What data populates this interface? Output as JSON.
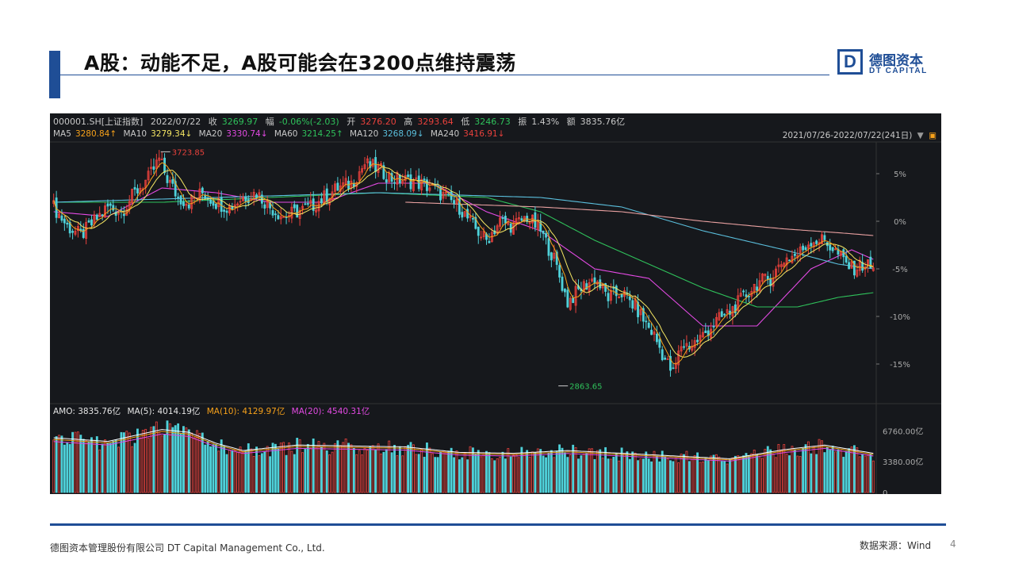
{
  "title": "A股：动能不足，A股可能会在3200点维持震荡",
  "logo": {
    "mark": "D",
    "cn": "德图资本",
    "en": "DT CAPITAL"
  },
  "info": {
    "code": "000001.SH[上证指数]",
    "date": "2022/07/22",
    "close_label": "收",
    "close": "3269.97",
    "change_label": "幅",
    "change": "-0.06%(-2.03)",
    "open_label": "开",
    "open": "3276.20",
    "high_label": "高",
    "high": "3293.64",
    "low_label": "低",
    "low": "3246.73",
    "amp_label": "振",
    "amp": "1.43%",
    "amount_label": "额",
    "amount": "3835.76亿"
  },
  "ma": [
    {
      "label": "MA5",
      "value": "3280.84↑",
      "color": "#f7a11a"
    },
    {
      "label": "MA10",
      "value": "3279.34↓",
      "color": "#f5e663"
    },
    {
      "label": "MA20",
      "value": "3330.74↓",
      "color": "#e44ae4"
    },
    {
      "label": "MA60",
      "value": "3214.25↑",
      "color": "#2fc25b"
    },
    {
      "label": "MA120",
      "value": "3268.09↓",
      "color": "#5bc0de"
    },
    {
      "label": "MA240",
      "value": "3416.91↓",
      "color": "#e8413c"
    }
  ],
  "range": "2021/07/26-2022/07/22(241日)",
  "amo": {
    "amo": "AMO: 3835.76亿",
    "ma5": "MA(5): 4014.19亿",
    "ma10": "MA(10): 4129.97亿",
    "ma20": "MA(20): 4540.31亿"
  },
  "colors": {
    "up": "#e8413c",
    "down": "#4fd1d9",
    "accent": "#1f4e96"
  },
  "chart_data": {
    "type": "candlestick",
    "y_axis_unit": "%",
    "y_ticks": [
      "5%",
      "0%",
      "-5%",
      "-10%",
      "-15%"
    ],
    "y_tick_values": [
      5,
      0,
      -5,
      -10,
      -15
    ],
    "ylim": [
      -19,
      8
    ],
    "annotations": [
      {
        "label": "3723.85",
        "x_index": 39,
        "value": 7.3
      },
      {
        "label": "2863.65",
        "x_index": 186,
        "value": -17.3
      }
    ],
    "close_pct_path": [
      [
        0,
        1.5
      ],
      [
        5,
        -0.5
      ],
      [
        10,
        -1.5
      ],
      [
        15,
        0.0
      ],
      [
        20,
        1.5
      ],
      [
        25,
        1.0
      ],
      [
        30,
        3.0
      ],
      [
        35,
        4.5
      ],
      [
        39,
        6.5
      ],
      [
        42,
        4.5
      ],
      [
        46,
        2.5
      ],
      [
        50,
        2.0
      ],
      [
        55,
        3.0
      ],
      [
        60,
        2.0
      ],
      [
        65,
        1.5
      ],
      [
        70,
        2.5
      ],
      [
        75,
        3.0
      ],
      [
        80,
        1.5
      ],
      [
        85,
        0.5
      ],
      [
        90,
        1.0
      ],
      [
        95,
        1.5
      ],
      [
        100,
        2.5
      ],
      [
        105,
        3.5
      ],
      [
        110,
        4.0
      ],
      [
        115,
        6.0
      ],
      [
        120,
        5.5
      ],
      [
        125,
        4.5
      ],
      [
        130,
        4.3
      ],
      [
        135,
        4.0
      ],
      [
        140,
        3.5
      ],
      [
        145,
        2.5
      ],
      [
        150,
        1.5
      ],
      [
        155,
        -0.5
      ],
      [
        160,
        -2.0
      ],
      [
        165,
        0.0
      ],
      [
        170,
        -0.5
      ],
      [
        175,
        0.5
      ],
      [
        180,
        -1.0
      ],
      [
        185,
        -4.0
      ],
      [
        190,
        -8.5
      ],
      [
        195,
        -7.0
      ],
      [
        200,
        -6.0
      ],
      [
        205,
        -8.0
      ],
      [
        210,
        -7.5
      ],
      [
        215,
        -9.0
      ],
      [
        222,
        -12.0
      ],
      [
        226,
        -14.5
      ],
      [
        229,
        -16.0
      ],
      [
        232,
        -13.0
      ],
      [
        236,
        -13.0
      ],
      [
        240,
        -12.0
      ],
      [
        245,
        -10.5
      ],
      [
        250,
        -9.5
      ],
      [
        255,
        -8.0
      ],
      [
        260,
        -6.5
      ],
      [
        265,
        -6.0
      ],
      [
        270,
        -4.0
      ],
      [
        275,
        -3.5
      ],
      [
        280,
        -2.0
      ],
      [
        285,
        -2.0
      ],
      [
        290,
        -3.5
      ],
      [
        295,
        -5.0
      ],
      [
        300,
        -4.5
      ],
      [
        303,
        -5.0
      ]
    ],
    "ma_series": [
      {
        "name": "MA20",
        "color": "#e44ae4",
        "points": [
          [
            0,
            1.0
          ],
          [
            20,
            0.5
          ],
          [
            40,
            3.5
          ],
          [
            60,
            3.0
          ],
          [
            80,
            2.0
          ],
          [
            100,
            2.0
          ],
          [
            120,
            4.0
          ],
          [
            140,
            4.0
          ],
          [
            160,
            1.0
          ],
          [
            180,
            -1.0
          ],
          [
            200,
            -5.0
          ],
          [
            220,
            -6.0
          ],
          [
            240,
            -11.0
          ],
          [
            260,
            -11.0
          ],
          [
            280,
            -5.0
          ],
          [
            295,
            -3.0
          ],
          [
            303,
            -4.0
          ]
        ]
      },
      {
        "name": "MA60",
        "color": "#2fc25b",
        "points": [
          [
            0,
            2.0
          ],
          [
            40,
            2.0
          ],
          [
            80,
            2.5
          ],
          [
            120,
            3.0
          ],
          [
            160,
            2.5
          ],
          [
            180,
            1.0
          ],
          [
            200,
            -2.0
          ],
          [
            220,
            -4.5
          ],
          [
            240,
            -7.0
          ],
          [
            260,
            -9.0
          ],
          [
            275,
            -9.0
          ],
          [
            290,
            -8.0
          ],
          [
            303,
            -7.5
          ]
        ]
      },
      {
        "name": "MA120",
        "color": "#5bc0de",
        "points": [
          [
            0,
            2.0
          ],
          [
            60,
            2.5
          ],
          [
            120,
            3.0
          ],
          [
            180,
            2.5
          ],
          [
            210,
            1.5
          ],
          [
            240,
            -1.0
          ],
          [
            270,
            -3.0
          ],
          [
            290,
            -4.5
          ],
          [
            303,
            -5.0
          ]
        ]
      },
      {
        "name": "MA240",
        "color": "#e8a0a0",
        "points": [
          [
            130,
            2.0
          ],
          [
            180,
            1.5
          ],
          [
            210,
            1.0
          ],
          [
            240,
            0.0
          ],
          [
            270,
            -0.8
          ],
          [
            290,
            -1.2
          ],
          [
            303,
            -1.5
          ]
        ]
      }
    ],
    "volume_ticks": [
      "6760.00亿",
      "3380.00亿",
      "0"
    ],
    "volume_tick_values": [
      6760,
      3380,
      0
    ],
    "volume_max": 8000,
    "volume_profile": [
      [
        0,
        6000
      ],
      [
        20,
        5600
      ],
      [
        40,
        6900
      ],
      [
        50,
        6600
      ],
      [
        60,
        5400
      ],
      [
        70,
        4600
      ],
      [
        90,
        5200
      ],
      [
        110,
        5100
      ],
      [
        130,
        5000
      ],
      [
        150,
        4400
      ],
      [
        170,
        4300
      ],
      [
        190,
        4600
      ],
      [
        210,
        4300
      ],
      [
        230,
        4000
      ],
      [
        250,
        3700
      ],
      [
        270,
        4700
      ],
      [
        285,
        5200
      ],
      [
        303,
        4300
      ]
    ]
  },
  "footer": {
    "company": "德图资本管理股份有限公司  DT Capital  Management  Co., Ltd.",
    "source": "数据来源：Wind",
    "page": "4"
  }
}
